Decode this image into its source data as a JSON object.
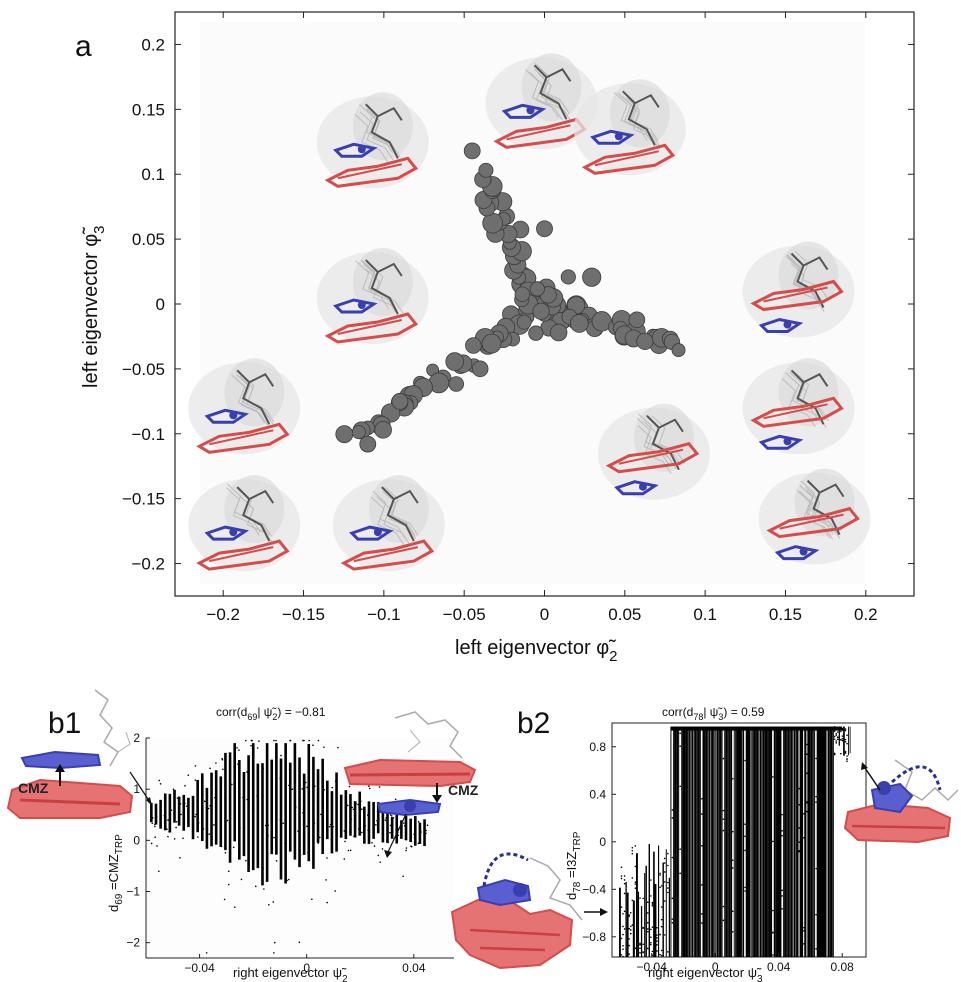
{
  "chart_data": [
    {
      "panel_label": "a",
      "type": "scatter",
      "xlabel": "left eigenvector φ̃",
      "xlabel_sub": "2",
      "ylabel": "left eigenvector φ̃",
      "ylabel_sub": "3",
      "xlim": [
        -0.23,
        0.23
      ],
      "ylim": [
        -0.225,
        0.225
      ],
      "xticks": [
        -0.2,
        -0.15,
        -0.1,
        -0.05,
        0,
        0.05,
        0.1,
        0.15,
        0.2
      ],
      "xtick_labels": [
        "−0.2",
        "−0.15",
        "−0.1",
        "−0.05",
        "0",
        "0.05",
        "0.1",
        "0.15",
        "0.2"
      ],
      "yticks": [
        0.2,
        0.15,
        0.1,
        0.05,
        0,
        -0.05,
        -0.1,
        -0.15,
        -0.2
      ],
      "ytick_labels": [
        "0.2",
        "0.15",
        "0.1",
        "0.05",
        "0",
        "−0.05",
        "−0.1",
        "−0.15",
        "−0.2"
      ],
      "arms": [
        {
          "from": [
            -0.005,
            0.0
          ],
          "to": [
            -0.04,
            0.1
          ],
          "count": 34
        },
        {
          "from": [
            -0.002,
            0.0
          ],
          "to": [
            -0.115,
            -0.105
          ],
          "count": 44
        },
        {
          "from": [
            0.0,
            0.0
          ],
          "to": [
            0.077,
            -0.032
          ],
          "count": 34
        }
      ],
      "extra_points": [
        [
          -0.045,
          0.118
        ],
        [
          0.0,
          0.058
        ],
        [
          -0.11,
          -0.108
        ],
        [
          -0.09,
          -0.075
        ]
      ],
      "colors": {
        "points": "#6f6f6f",
        "point_edge": "#3c3c3c",
        "red": "#d64b4b",
        "blue": "#3a3fb0",
        "gray": "#8a8a8a"
      }
    },
    {
      "panel_label": "b1",
      "type": "scatter",
      "title": "corr(d",
      "title_sub1": "69",
      "title_mid": "| ψ̃",
      "title_sub2": "2",
      "title_end": ") = −0.81",
      "xlabel": "right eigenvector ψ̃",
      "xlabel_sub": "2",
      "ylabel": "d",
      "ylabel_sub1": "69",
      "ylabel_mid": " =CMZ",
      "ylabel_sub2": "TRP",
      "xlim": [
        -0.06,
        0.055
      ],
      "ylim": [
        -2.3,
        2.0
      ],
      "xticks": [
        -0.04,
        0,
        0.04
      ],
      "xtick_labels": [
        "−0.04",
        "0",
        "0.04"
      ],
      "yticks": [
        2,
        1,
        0,
        -1,
        -2
      ],
      "ytick_labels": [
        "2",
        "1",
        "0",
        "−1",
        "−2"
      ],
      "annotation_left": "CMZ",
      "annotation_right": "CMZ"
    },
    {
      "panel_label": "b2",
      "type": "scatter",
      "title": "corr(d",
      "title_sub1": "78",
      "title_mid": "| ψ̃",
      "title_sub2": "3",
      "title_end": ") = 0.59",
      "xlabel": "right eigenvector ψ̃",
      "xlabel_sub": "3",
      "ylabel": "d",
      "ylabel_sub1": "78",
      "ylabel_mid": " =I3Z",
      "ylabel_sub2": "TRP",
      "xlim": [
        -0.065,
        0.095
      ],
      "ylim": [
        -0.97,
        1.0
      ],
      "xticks": [
        -0.04,
        0,
        0.04,
        0.08
      ],
      "xtick_labels": [
        "−0.04",
        "0",
        "0.04",
        "0.08"
      ],
      "yticks": [
        0.8,
        0.4,
        0,
        -0.4,
        -0.8
      ],
      "ytick_labels": [
        "0.8",
        "0.4",
        "0",
        "−0.4",
        "−0.8"
      ]
    }
  ]
}
